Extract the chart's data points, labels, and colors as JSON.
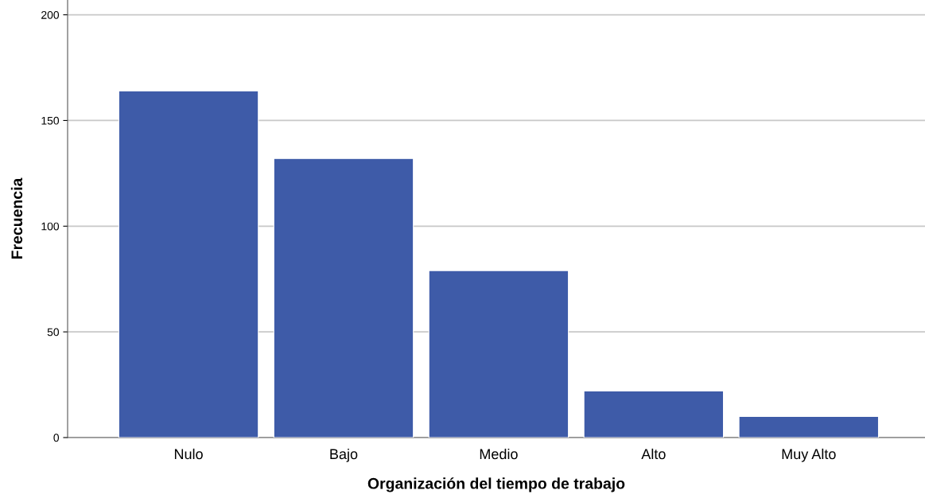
{
  "chart_data": {
    "type": "bar",
    "xlabel": "Organización del tiempo de trabajo",
    "ylabel": "Frecuencia",
    "categories": [
      "Nulo",
      "Bajo",
      "Medio",
      "Alto",
      "Muy Alto"
    ],
    "values": [
      164,
      132,
      79,
      22,
      10
    ],
    "color": "#3e5ba8",
    "ylim": [
      0,
      207
    ],
    "yticks": [
      0,
      50,
      100,
      150,
      200
    ],
    "grid": "y"
  }
}
